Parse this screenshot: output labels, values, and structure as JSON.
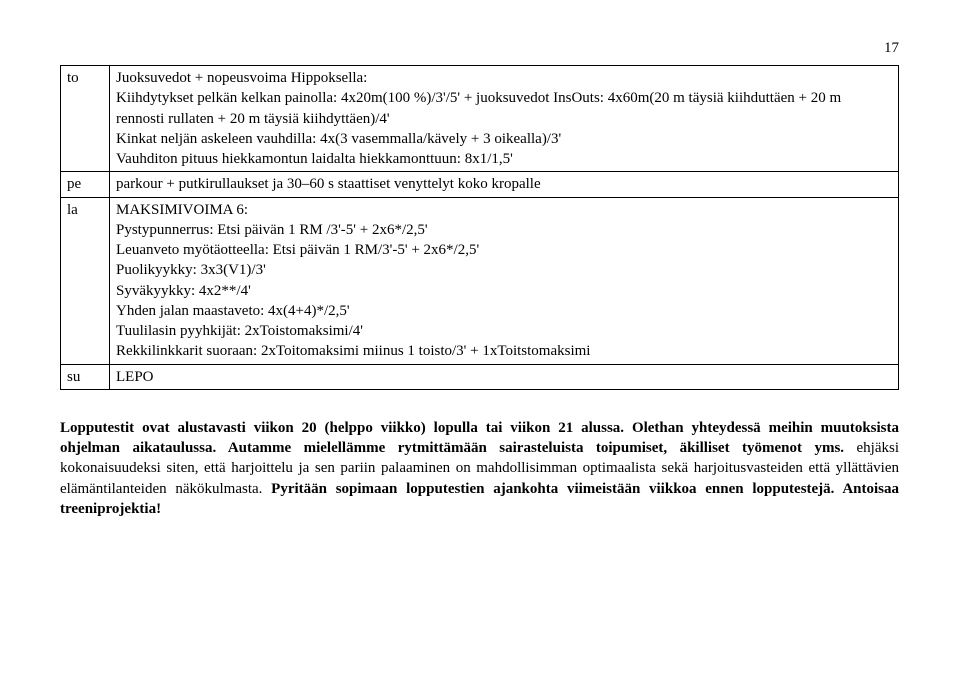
{
  "page_number": "17",
  "table": {
    "rows": [
      {
        "day": "to",
        "lines": [
          "Juoksuvedot + nopeusvoima Hippoksella:",
          "Kiihdytykset pelkän kelkan painolla: 4x20m(100 %)/3'/5' + juoksuvedot InsOuts: 4x60m(20 m täysiä kiihduttäen + 20 m rennosti rullaten + 20 m täysiä kiihdyttäen)/4'",
          "Kinkat neljän askeleen vauhdilla: 4x(3 vasemmalla/kävely + 3 oikealla)/3'",
          "Vauhditon pituus hiekkamontun laidalta hiekkamonttuun: 8x1/1,5'"
        ]
      },
      {
        "day": "pe",
        "lines": [
          "parkour + putkirullaukset ja 30–60 s staattiset venyttelyt koko kropalle"
        ]
      },
      {
        "day": "la",
        "lines": [
          "MAKSIMIVOIMA 6:",
          "Pystypunnerrus: Etsi päivän 1 RM /3'-5' + 2x6*/2,5'",
          "Leuanveto myötäotteella: Etsi päivän 1 RM/3'-5' + 2x6*/2,5'",
          "Puolikyykky: 3x3(V1)/3'",
          "Syväkyykky: 4x2**/4'",
          "Yhden jalan maastaveto: 4x(4+4)*/2,5'",
          "Tuulilasin pyyhkijät: 2xToistomaksimi/4'",
          "Rekkilinkkarit suoraan: 2xToitomaksimi miinus 1 toisto/3' + 1xToitstomaksimi"
        ]
      },
      {
        "day": "su",
        "lines": [
          "LEPO"
        ]
      }
    ]
  },
  "footer": {
    "bold1": "Lopputestit ovat alustavasti viikon 20 (helppo viikko) lopulla tai viikon 21 alussa. Olethan yhteydessä meihin muutoksista ohjelman aikataulussa. Autamme mielellämme rytmittämään sairasteluista toipumiset, äkilliset työmenot yms.",
    "plain": " ehjäksi kokonaisuudeksi siten, että harjoittelu ja sen pariin palaaminen on mahdollisimman optimaalista sekä harjoitusvasteiden että yllättävien elämäntilanteiden näkökulmasta. ",
    "bold2": "Pyritään sopimaan lopputestien ajankohta viimeistään viikkoa ennen lopputestejä. Antoisaa treeniprojektia!"
  }
}
